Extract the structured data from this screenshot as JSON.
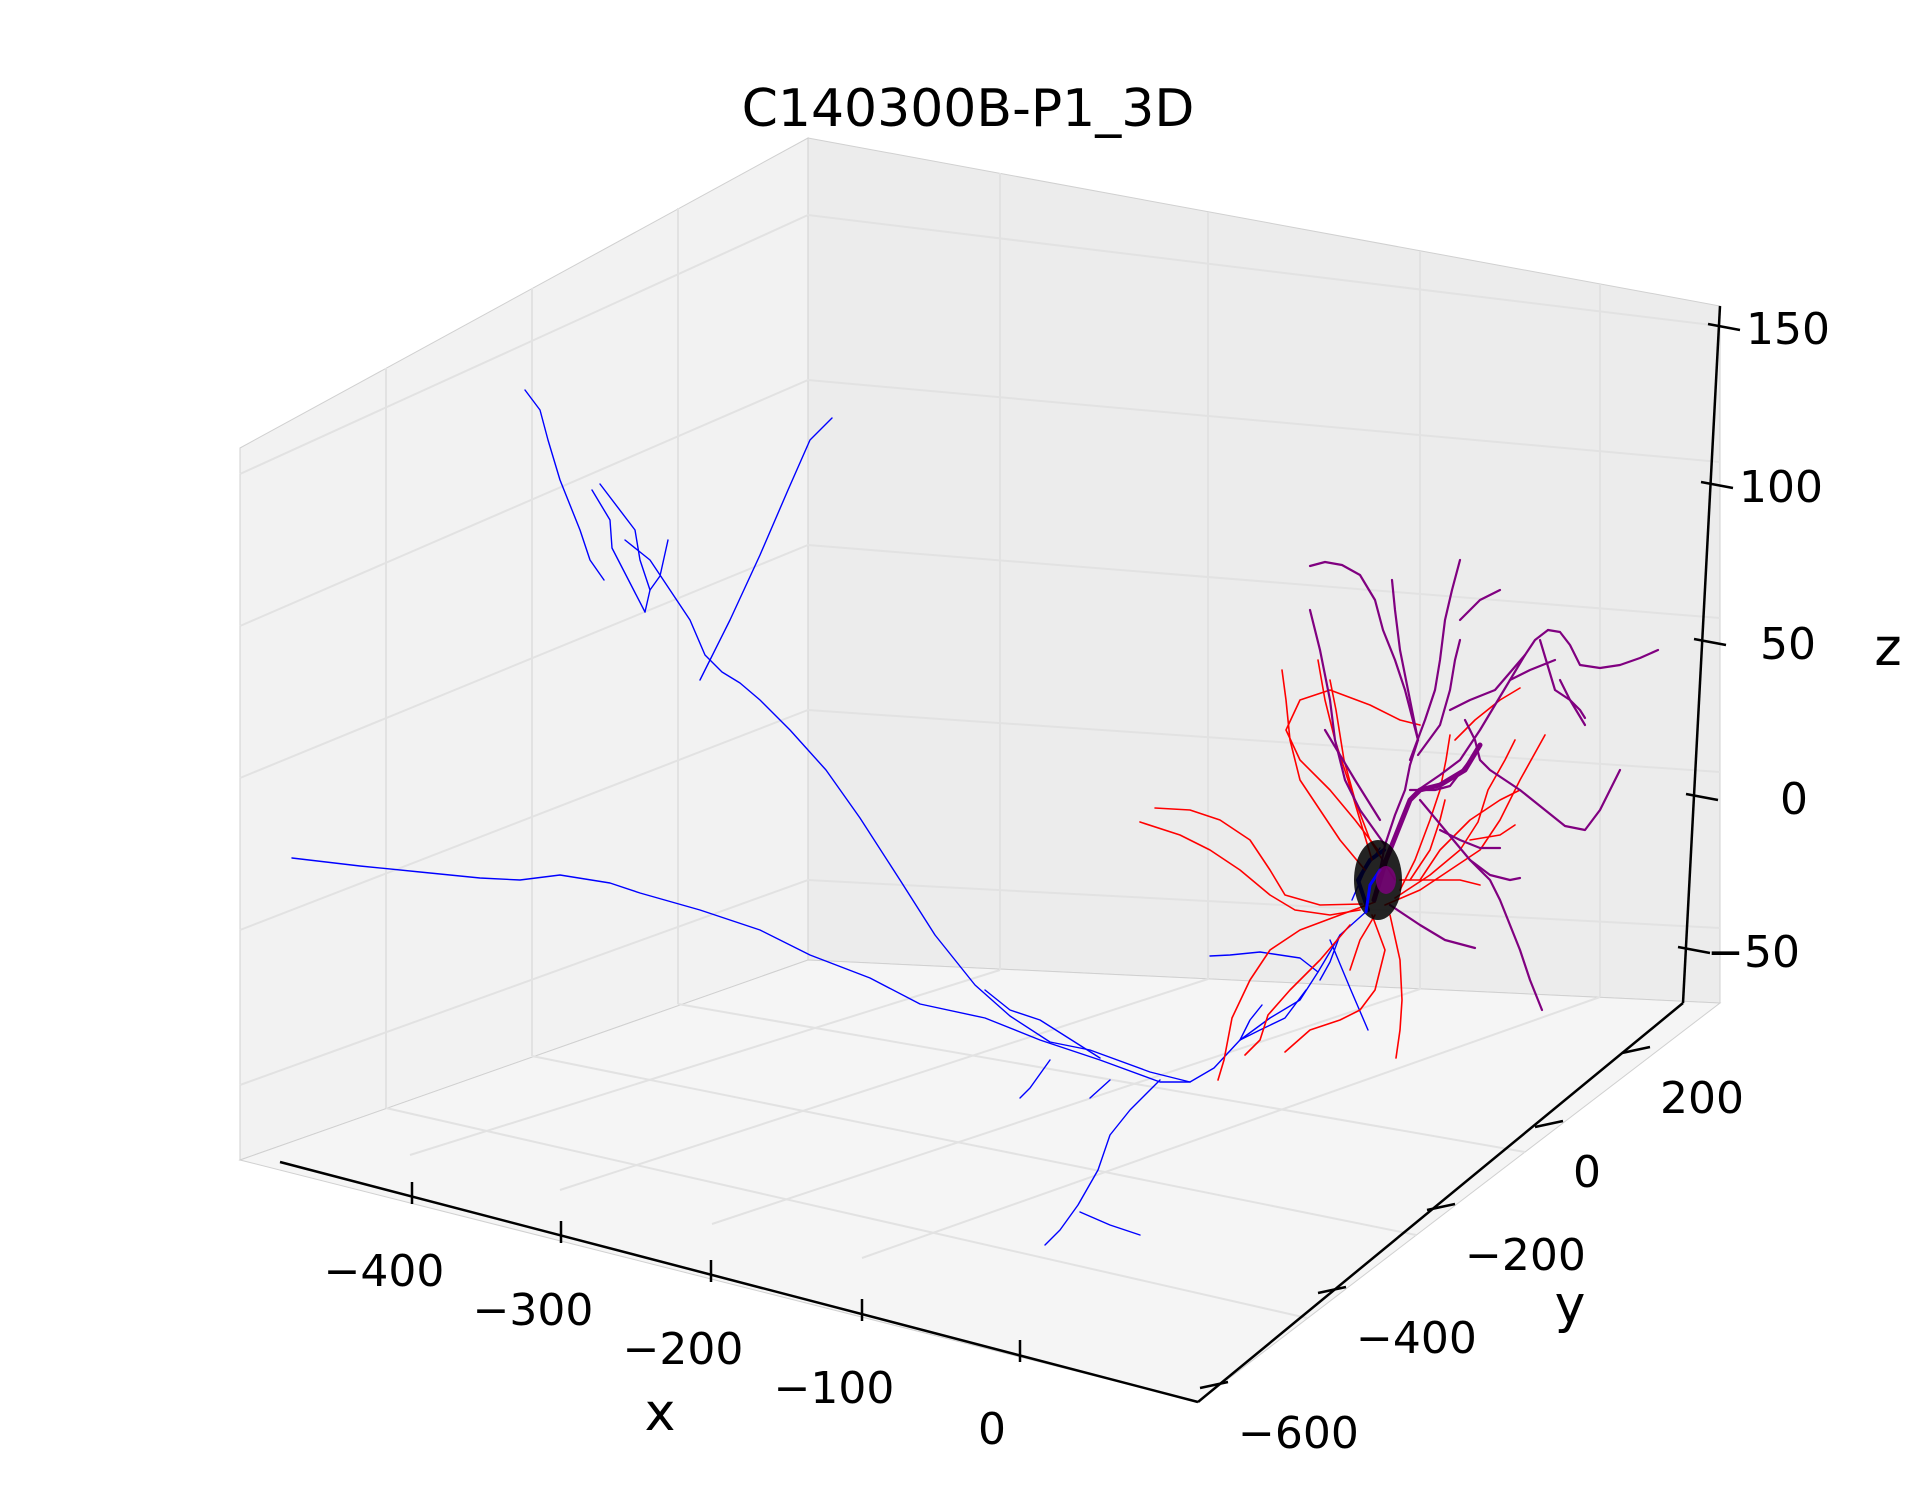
{
  "chart_data": {
    "type": "3d-line",
    "title": "C140300B-P1_3D",
    "xlabel": "x",
    "ylabel": "y",
    "zlabel": "z",
    "xlim": [
      -480,
      80
    ],
    "ylim": [
      -620,
      300
    ],
    "zlim": [
      -65,
      160
    ],
    "x_ticks": [
      -400,
      -300,
      -200,
      -100,
      0
    ],
    "y_ticks": [
      -600,
      -400,
      -200,
      0,
      200
    ],
    "z_ticks": [
      -50,
      0,
      50,
      100,
      150
    ],
    "x_tick_labels": [
      "−400",
      "−300",
      "−200",
      "−100",
      "0"
    ],
    "y_tick_labels": [
      "−600",
      "−400",
      "−200",
      "0",
      "200"
    ],
    "z_tick_labels": [
      "−50",
      "0",
      "50",
      "100",
      "150"
    ],
    "grid": true,
    "legend": "none",
    "colors": {
      "axon": "#0000ff",
      "basal_dendrite": "#ff0000",
      "apical_dendrite": "#800080",
      "soma": "#000000",
      "pane": "#f2f2f2",
      "gridline": "#e6e6e6"
    },
    "soma": {
      "x": 0,
      "y": 0,
      "z": 0
    }
  }
}
